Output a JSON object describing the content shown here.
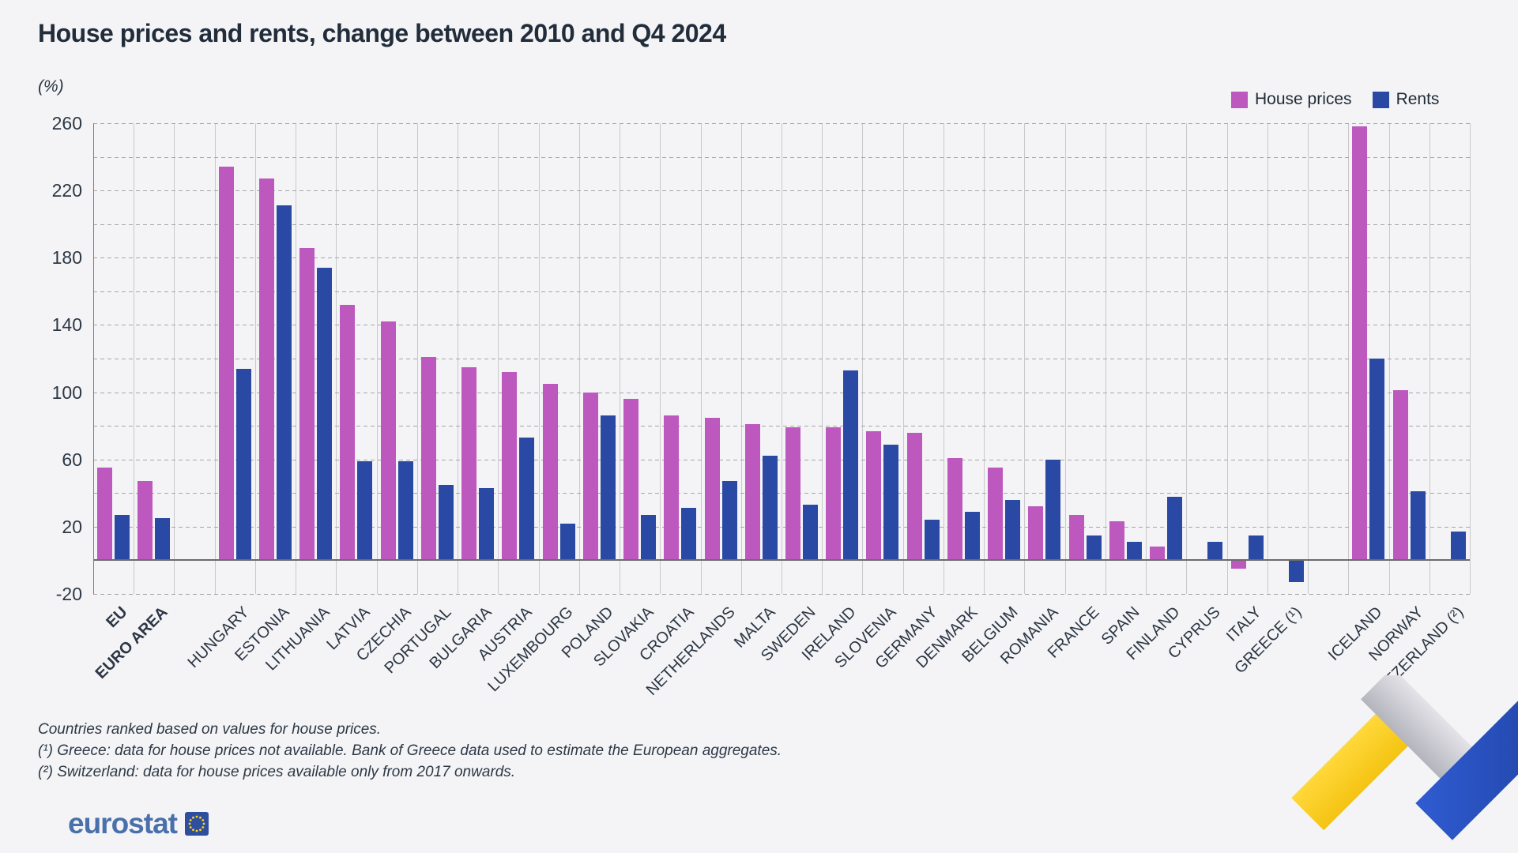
{
  "title": "House prices and rents, change between 2010 and Q4 2024",
  "unit_label": "(%)",
  "legend": {
    "house_prices_label": "House prices",
    "rents_label": "Rents"
  },
  "colors": {
    "house_prices": "#bd58be",
    "rents": "#2a49a5",
    "background": "#f4f4f6",
    "grid_dashed": "#a6a6a8",
    "grid_vertical": "#c9c9cc",
    "zero_line": "#6b6b6b",
    "text": "#2c3744",
    "logo_blue": "#4a70ab",
    "ribbon_yellow": "#fdd12f",
    "ribbon_blue": "#2a52c5"
  },
  "footnotes": [
    "Countries ranked based on values for house prices.",
    "(¹) Greece: data for house prices not available. Bank of Greece data used to estimate the European aggregates.",
    "(²) Switzerland: data for house prices available only from 2017 onwards."
  ],
  "logo_text": "eurostat",
  "chart_data": {
    "type": "bar",
    "title": "House prices and rents, change between 2010 and Q4 2024",
    "xlabel": "",
    "ylabel": "(%)",
    "ylim": [
      -20,
      260
    ],
    "grid": true,
    "gridline_step": 20,
    "ytick_labels": [
      260,
      220,
      180,
      140,
      100,
      60,
      20,
      -20
    ],
    "legend_position": "top-right",
    "layout": {
      "total_slots": 34,
      "empty_slots": [
        2,
        30
      ]
    },
    "series_names": [
      "House prices",
      "Rents"
    ],
    "categories": [
      {
        "label": "EU",
        "bold": true,
        "slot": 0,
        "house_prices": 55,
        "rents": 27
      },
      {
        "label": "EURO AREA",
        "bold": true,
        "slot": 1,
        "house_prices": 47,
        "rents": 25
      },
      {
        "label": "HUNGARY",
        "bold": false,
        "slot": 3,
        "house_prices": 234,
        "rents": 114
      },
      {
        "label": "ESTONIA",
        "bold": false,
        "slot": 4,
        "house_prices": 227,
        "rents": 211
      },
      {
        "label": "LITHUANIA",
        "bold": false,
        "slot": 5,
        "house_prices": 186,
        "rents": 174
      },
      {
        "label": "LATVIA",
        "bold": false,
        "slot": 6,
        "house_prices": 152,
        "rents": 59
      },
      {
        "label": "CZECHIA",
        "bold": false,
        "slot": 7,
        "house_prices": 142,
        "rents": 59
      },
      {
        "label": "PORTUGAL",
        "bold": false,
        "slot": 8,
        "house_prices": 121,
        "rents": 45
      },
      {
        "label": "BULGARIA",
        "bold": false,
        "slot": 9,
        "house_prices": 115,
        "rents": 43
      },
      {
        "label": "AUSTRIA",
        "bold": false,
        "slot": 10,
        "house_prices": 112,
        "rents": 73
      },
      {
        "label": "LUXEMBOURG",
        "bold": false,
        "slot": 11,
        "house_prices": 105,
        "rents": 22
      },
      {
        "label": "POLAND",
        "bold": false,
        "slot": 12,
        "house_prices": 100,
        "rents": 86
      },
      {
        "label": "SLOVAKIA",
        "bold": false,
        "slot": 13,
        "house_prices": 96,
        "rents": 27
      },
      {
        "label": "CROATIA",
        "bold": false,
        "slot": 14,
        "house_prices": 86,
        "rents": 31
      },
      {
        "label": "NETHERLANDS",
        "bold": false,
        "slot": 15,
        "house_prices": 85,
        "rents": 47
      },
      {
        "label": "MALTA",
        "bold": false,
        "slot": 16,
        "house_prices": 81,
        "rents": 62
      },
      {
        "label": "SWEDEN",
        "bold": false,
        "slot": 17,
        "house_prices": 79,
        "rents": 33
      },
      {
        "label": "IRELAND",
        "bold": false,
        "slot": 18,
        "house_prices": 79,
        "rents": 113
      },
      {
        "label": "SLOVENIA",
        "bold": false,
        "slot": 19,
        "house_prices": 77,
        "rents": 69
      },
      {
        "label": "GERMANY",
        "bold": false,
        "slot": 20,
        "house_prices": 76,
        "rents": 24
      },
      {
        "label": "DENMARK",
        "bold": false,
        "slot": 21,
        "house_prices": 61,
        "rents": 29
      },
      {
        "label": "BELGIUM",
        "bold": false,
        "slot": 22,
        "house_prices": 55,
        "rents": 36
      },
      {
        "label": "ROMANIA",
        "bold": false,
        "slot": 23,
        "house_prices": 32,
        "rents": 60
      },
      {
        "label": "FRANCE",
        "bold": false,
        "slot": 24,
        "house_prices": 27,
        "rents": 15
      },
      {
        "label": "SPAIN",
        "bold": false,
        "slot": 25,
        "house_prices": 23,
        "rents": 11
      },
      {
        "label": "FINLAND",
        "bold": false,
        "slot": 26,
        "house_prices": 8,
        "rents": 38
      },
      {
        "label": "CYPRUS",
        "bold": false,
        "slot": 27,
        "house_prices": 0,
        "rents": 11
      },
      {
        "label": "ITALY",
        "bold": false,
        "slot": 28,
        "house_prices": -5,
        "rents": 15
      },
      {
        "label": "GREECE (¹)",
        "bold": false,
        "slot": 29,
        "house_prices": null,
        "rents": -13
      },
      {
        "label": "ICELAND",
        "bold": false,
        "slot": 31,
        "house_prices": 258,
        "rents": 120
      },
      {
        "label": "NORWAY",
        "bold": false,
        "slot": 32,
        "house_prices": 101,
        "rents": 41
      },
      {
        "label": "SWITZERLAND (²)",
        "bold": false,
        "slot": 33,
        "house_prices": null,
        "rents": 17
      }
    ]
  }
}
